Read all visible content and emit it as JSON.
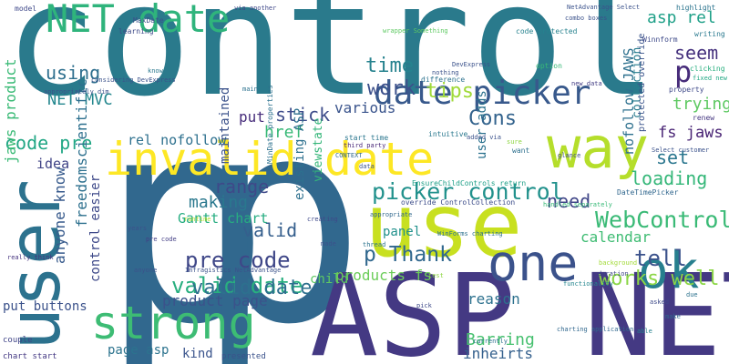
{
  "words": [
    {
      "text": "control",
      "color": "#2a7a8c"
    },
    {
      "text": "p",
      "color": "#31688e"
    },
    {
      "text": "p",
      "color": "#31688e"
    },
    {
      "text": "ASP NET",
      "color": "#443983"
    },
    {
      "text": "user",
      "color": "#2c728e"
    },
    {
      "text": "use",
      "color": "#c8e020"
    },
    {
      "text": "strong",
      "color": "#3dbc74"
    },
    {
      "text": "invalid date",
      "color": "#fde725"
    },
    {
      "text": "NET date",
      "color": "#2fb47c"
    },
    {
      "text": "way",
      "color": "#b5de2b"
    },
    {
      "text": "one",
      "color": "#3b528b"
    },
    {
      "text": "date picker",
      "color": "#38598c"
    },
    {
      "text": "ok",
      "color": "#277f8e"
    },
    {
      "text": "picker control",
      "color": "#21918c"
    },
    {
      "text": "WebControl",
      "color": "#3aba76"
    },
    {
      "text": "valid date",
      "color": "#29af7f"
    },
    {
      "text": "pre code",
      "color": "#3f4788"
    },
    {
      "text": "p Thank",
      "color": "#31688e"
    },
    {
      "text": "tell",
      "color": "#3b528b"
    },
    {
      "text": "works well",
      "color": "#8bd646"
    },
    {
      "text": "Cons",
      "color": "#33638d"
    },
    {
      "text": "tips",
      "color": "#a0da39"
    },
    {
      "text": "stick",
      "color": "#3e4c8a"
    },
    {
      "text": "href",
      "color": "#38b977"
    },
    {
      "text": "time",
      "color": "#26828e"
    },
    {
      "text": "work",
      "color": "#3c508b"
    },
    {
      "text": "using",
      "color": "#2e6f8e"
    },
    {
      "text": "NET MVC",
      "color": "#24878e"
    },
    {
      "text": "code pre",
      "color": "#22a785"
    },
    {
      "text": "rel nofollow",
      "color": "#2d708e"
    },
    {
      "text": "range",
      "color": "#3e4989"
    },
    {
      "text": "valid",
      "color": "#355f8d"
    },
    {
      "text": "making",
      "color": "#2a788e"
    },
    {
      "text": "Gantt chart",
      "color": "#27ad81"
    },
    {
      "text": "idea",
      "color": "#414487"
    },
    {
      "text": "pre code",
      "color": "#433e85"
    },
    {
      "text": "valid date",
      "color": "#2d708e"
    },
    {
      "text": "product page",
      "color": "#3b528b"
    },
    {
      "text": "calendar",
      "color": "#3fbc73"
    },
    {
      "text": "need",
      "color": "#404688"
    },
    {
      "text": "loading",
      "color": "#35b779"
    },
    {
      "text": "set",
      "color": "#2a768e"
    },
    {
      "text": "seem",
      "color": "#46327e"
    },
    {
      "text": "p",
      "color": "#472c7a"
    },
    {
      "text": "trying",
      "color": "#5ec962"
    },
    {
      "text": "fs jaws",
      "color": "#482374"
    },
    {
      "text": "asp rel",
      "color": "#1fa088"
    },
    {
      "text": "various",
      "color": "#3a548c"
    },
    {
      "text": "put",
      "color": "#472d7b"
    },
    {
      "text": "products fs",
      "color": "#6ccd5a"
    },
    {
      "text": "Barring",
      "color": "#46c06f"
    },
    {
      "text": "reason",
      "color": "#2d718e"
    },
    {
      "text": "inheirts",
      "color": "#34608d"
    },
    {
      "text": "page asp",
      "color": "#2c738e"
    },
    {
      "text": "kind",
      "color": "#3a548c"
    },
    {
      "text": "put buttons",
      "color": "#3b528b"
    },
    {
      "text": "child",
      "color": "#5ec962"
    },
    {
      "text": "panel",
      "color": "#21918c"
    },
    {
      "text": "chart start",
      "color": "#443983"
    },
    {
      "text": "couple",
      "color": "#404588"
    },
    {
      "text": "presented",
      "color": "#3b528b"
    },
    {
      "text": "model",
      "color": "#3f4889"
    },
    {
      "text": "learning",
      "color": "#3e4a89"
    },
    {
      "text": "MaxDate",
      "color": "#3b528b"
    },
    {
      "text": "combo boxes",
      "color": "#3b528b"
    },
    {
      "text": "highlight",
      "color": "#2b748e"
    },
    {
      "text": "writing",
      "color": "#29798e"
    },
    {
      "text": "Winnform",
      "color": "#3e4a89"
    },
    {
      "text": "code protected",
      "color": "#26828e"
    },
    {
      "text": "nothing",
      "color": "#3b528b"
    },
    {
      "text": "difference",
      "color": "#2c718e"
    },
    {
      "text": "option",
      "color": "#38b977"
    },
    {
      "text": "new data",
      "color": "#433d84"
    },
    {
      "text": "clicking",
      "color": "#29af7f"
    },
    {
      "text": "property",
      "color": "#3e4989"
    },
    {
      "text": "renew",
      "color": "#453781"
    },
    {
      "text": "fixed new",
      "color": "#22a884"
    },
    {
      "text": "start time",
      "color": "#2a768e"
    },
    {
      "text": "intuitive",
      "color": "#2a788e"
    },
    {
      "text": "added via",
      "color": "#3b528b"
    },
    {
      "text": "sure",
      "color": "#8fd744"
    },
    {
      "text": "want",
      "color": "#2d708e"
    },
    {
      "text": "third party",
      "color": "#482677"
    },
    {
      "text": "CONTEXT",
      "color": "#31688e"
    },
    {
      "text": "glance",
      "color": "#3e4c8a"
    },
    {
      "text": "data",
      "color": "#3a538b"
    },
    {
      "text": "EnsureChildControls return",
      "color": "#1fa088"
    },
    {
      "text": "DateTimePicker",
      "color": "#31678e"
    },
    {
      "text": "override ControlCollection",
      "color": "#3d4d8a"
    },
    {
      "text": "appropriate",
      "color": "#31688e"
    },
    {
      "text": "handled separately",
      "color": "#38b977"
    },
    {
      "text": "creating",
      "color": "#3e4989"
    },
    {
      "text": "thread",
      "color": "#2c738e"
    },
    {
      "text": "WinForms charting",
      "color": "#2d708e"
    },
    {
      "text": "made",
      "color": "#3b528b"
    },
    {
      "text": "runtime",
      "color": "#b5de2b"
    },
    {
      "text": "years",
      "color": "#3b528b"
    },
    {
      "text": "anyone",
      "color": "#3b528b"
    },
    {
      "text": "background",
      "color": "#a2da37"
    },
    {
      "text": "duration",
      "color": "#3f4788"
    },
    {
      "text": "functionality",
      "color": "#24868e"
    },
    {
      "text": "due",
      "color": "#2c728e"
    },
    {
      "text": "asked",
      "color": "#3e4a89"
    },
    {
      "text": "make",
      "color": "#31688e"
    },
    {
      "text": "able",
      "color": "#26828e"
    },
    {
      "text": "pick",
      "color": "#3e4a89"
    },
    {
      "text": "currently",
      "color": "#2d708e"
    },
    {
      "text": "test",
      "color": "#8fd744"
    },
    {
      "text": "really think",
      "color": "#46337f"
    },
    {
      "text": "know",
      "color": "#2a788e"
    },
    {
      "text": "main",
      "color": "#2c728e"
    },
    {
      "text": "via another",
      "color": "#3f4889"
    },
    {
      "text": "wrapper Something",
      "color": "#5ec962"
    },
    {
      "text": "DevExpress",
      "color": "#3b528b"
    },
    {
      "text": "Select customer",
      "color": "#3b528b"
    },
    {
      "text": "jaws product",
      "color": "#3aba76"
    },
    {
      "text": "freedomscientific",
      "color": "#2d708e"
    },
    {
      "text": "anyone know",
      "color": "#375a8c"
    },
    {
      "text": "control easier",
      "color": "#3e4989"
    },
    {
      "text": "maintained",
      "color": "#3b528b"
    },
    {
      "text": "existing ASP",
      "color": "#2d708e"
    },
    {
      "text": "viewstate",
      "color": "#34b679"
    },
    {
      "text": "user adds",
      "color": "#2c728e"
    },
    {
      "text": "nofollow JAWS",
      "color": "#2d708e"
    },
    {
      "text": "collection",
      "color": "#287d8e"
    },
    {
      "text": "protected override",
      "color": "#3a538b"
    },
    {
      "text": "MinDate properties",
      "color": "#2c718e"
    },
    {
      "text": "considering DevExpress",
      "color": "#3b528b"
    },
    {
      "text": "appropriately dim",
      "color": "#3b528b"
    },
    {
      "text": "Infragistics NetAdvantage",
      "color": "#3b528b"
    },
    {
      "text": "NetAdvantage Select",
      "color": "#3b528b"
    },
    {
      "text": "charting application",
      "color": "#31688e"
    }
  ]
}
